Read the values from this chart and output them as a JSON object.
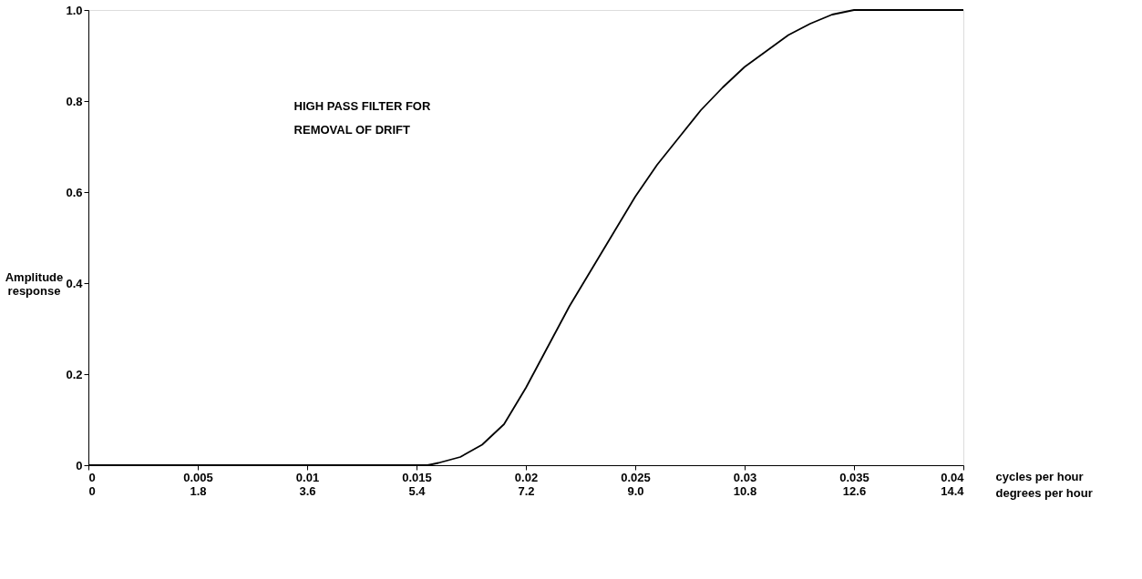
{
  "chart_data": {
    "type": "line",
    "x": [
      0,
      0.0155,
      0.016,
      0.017,
      0.018,
      0.019,
      0.02,
      0.021,
      0.022,
      0.023,
      0.024,
      0.025,
      0.026,
      0.027,
      0.028,
      0.029,
      0.03,
      0.031,
      0.032,
      0.033,
      0.034,
      0.035,
      0.04
    ],
    "series": [
      {
        "color": "#000000",
        "values": [
          0,
          0,
          0.005,
          0.018,
          0.045,
          0.09,
          0.17,
          0.26,
          0.35,
          0.43,
          0.51,
          0.59,
          0.66,
          0.72,
          0.78,
          0.83,
          0.875,
          0.91,
          0.945,
          0.97,
          0.99,
          1.0,
          1.0
        ]
      }
    ],
    "xlabel": "cycles per hour",
    "ylabel": "Amplitude\nresponse",
    "x2label": "degrees per hour",
    "xlim": [
      0,
      0.04
    ],
    "xticks": [
      0,
      0.005,
      0.01,
      0.015,
      0.02,
      0.025,
      0.03,
      0.035,
      0.04
    ],
    "x2lim": [
      0,
      14.4
    ],
    "x2ticks": [
      0,
      1.8,
      3.6,
      5.4,
      7.2,
      {
        "value": 9.0,
        "label": "9.0"
      },
      10.8,
      12.6,
      14.4
    ],
    "ylim": [
      0,
      1
    ],
    "yticks": [
      0,
      0.2,
      0.4,
      0.6,
      0.8,
      {
        "value": 1.0,
        "label": "1.0"
      }
    ],
    "annotations": [
      "HIGH PASS FILTER FOR\nREMOVAL OF DRIFT"
    ],
    "grid": false,
    "legend": false,
    "marker": "none",
    "line_style": "solid"
  }
}
